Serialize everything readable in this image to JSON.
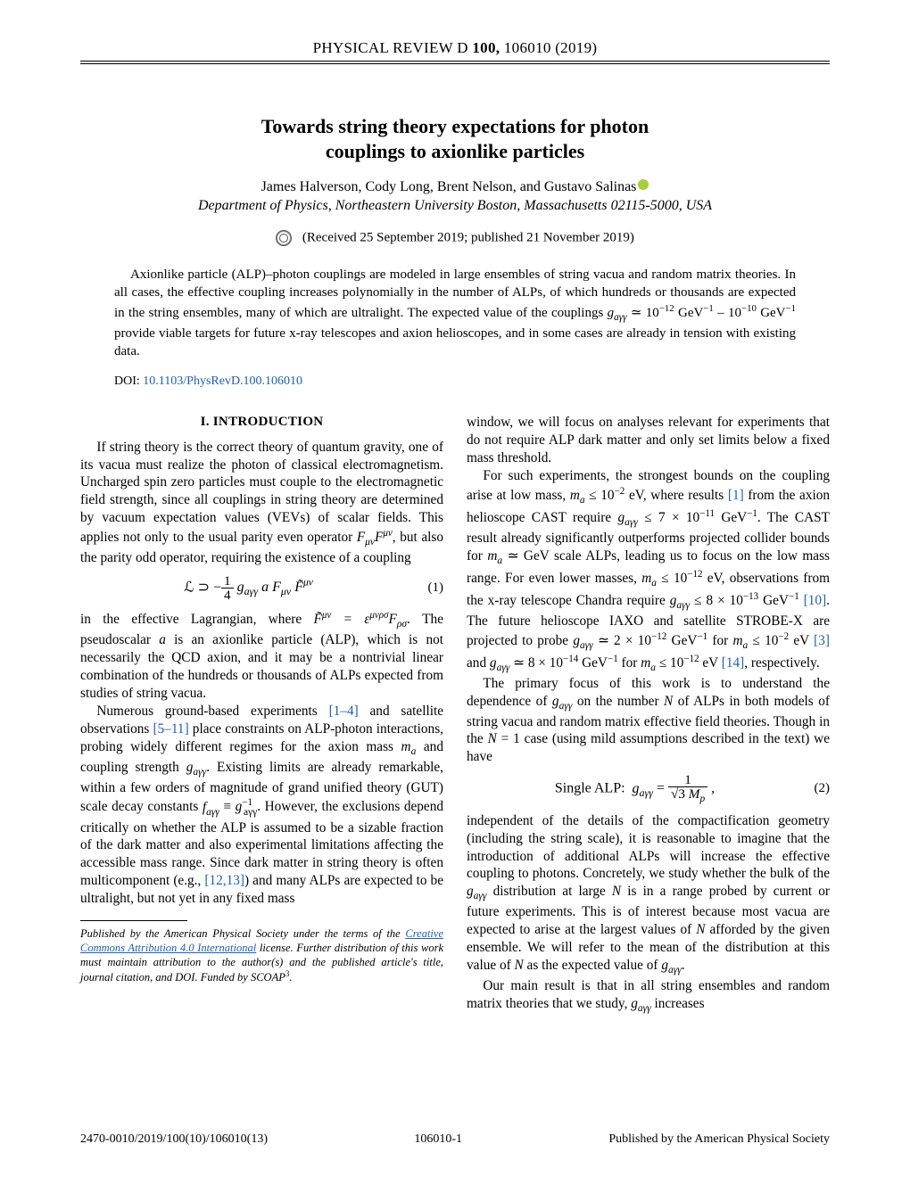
{
  "running_head": {
    "journal": "PHYSICAL REVIEW D",
    "volume": "100,",
    "article": "106010 (2019)"
  },
  "title": {
    "line1": "Towards string theory expectations for photon",
    "line2": "couplings to axionlike particles"
  },
  "authors": "James Halverson, Cody Long, Brent Nelson, and Gustavo Salinas",
  "affiliation": "Department of Physics, Northeastern University Boston, Massachusetts 02115-5000, USA",
  "dates": "(Received 25 September 2019; published 21 November 2019)",
  "abstract": "Axionlike particle (ALP)–photon couplings are modeled in large ensembles of string vacua and random matrix theories. In all cases, the effective coupling increases polynomially in the number of ALPs, of which hundreds or thousands are expected in the string ensembles, many of which are ultralight. The expected value of the couplings g_{aγγ} ≃ 10⁻¹² GeV⁻¹ – 10⁻¹⁰ GeV⁻¹ provide viable targets for future x-ray telescopes and axion helioscopes, and in some cases are already in tension with existing data.",
  "doi": {
    "label": "DOI:",
    "id": "10.1103/PhysRevD.100.106010"
  },
  "section1": {
    "heading": "I. INTRODUCTION"
  },
  "left": {
    "p1": "If string theory is the correct theory of quantum gravity, one of its vacua must realize the photon of classical electromagnetism. Uncharged spin zero particles must couple to the electromagnetic field strength, since all couplings in string theory are determined by vacuum expectation values (VEVs) of scalar fields. This applies not only to the usual parity even operator F_{μν}F^{μν}, but also the parity odd operator, requiring the existence of a coupling",
    "eq1_num": "(1)",
    "p2a": "in the effective Lagrangian, where ",
    "p2b": ". The pseudoscalar a is an axionlike particle (ALP), which is not necessarily the QCD axion, and it may be a nontrivial linear combination of the hundreds or thousands of ALPs expected from studies of string vacua.",
    "p3a": "Numerous ground-based experiments ",
    "cite1": "[1–4]",
    "p3b": " and satellite observations ",
    "cite2": "[5–11]",
    "p3c": " place constraints on ALP-photon interactions, probing widely different regimes for the axion mass m_a and coupling strength g_{aγγ}. Existing limits are already remarkable, within a few orders of magnitude of grand unified theory (GUT) scale decay constants f_{aγγ} ≡ g_{aγγ}⁻¹. However, the exclusions depend critically on whether the ALP is assumed to be a sizable fraction of the dark matter and also experimental limitations affecting the accessible mass range. Since dark matter in string theory is often multicomponent (e.g., ",
    "cite3": "[12,13]",
    "p3d": ") and many ALPs are expected to be ultralight, but not yet in any fixed mass",
    "footnote_a": "Published by the American Physical Society under the terms of the ",
    "footnote_link": "Creative Commons Attribution 4.0 International",
    "footnote_b": " license. Further distribution of this work must maintain attribution to the author(s) and the published article's title, journal citation, and DOI. Funded by SCOAP³."
  },
  "right": {
    "p1": "window, we will focus on analyses relevant for experiments that do not require ALP dark matter and only set limits below a fixed mass threshold.",
    "p2a": "For such experiments, the strongest bounds on the coupling arise at low mass, m_a ≤ 10⁻² eV, where results ",
    "cite1": "[1]",
    "p2b": " from the axion helioscope CAST require g_{aγγ} ≤ 7 × 10⁻¹¹ GeV⁻¹. The CAST result already significantly outperforms projected collider bounds for m_a ≃ GeV scale ALPs, leading us to focus on the low mass range. For even lower masses, m_a ≤ 10⁻¹² eV, observations from the x-ray telescope Chandra require g_{aγγ} ≤ 8 × 10⁻¹³ GeV⁻¹ ",
    "cite2": "[10]",
    "p2c": ". The future helioscope IAXO and satellite STROBE-X are projected to probe g_{aγγ} ≃ 2 × 10⁻¹² GeV⁻¹ for m_a ≤ 10⁻² eV ",
    "cite3": "[3]",
    "p2d": " and g_{aγγ} ≃ 8 × 10⁻¹⁴ GeV⁻¹ for m_a ≤ 10⁻¹² eV ",
    "cite4": "[14]",
    "p2e": ", respectively.",
    "p3": "The primary focus of this work is to understand the dependence of g_{aγγ} on the number N of ALPs in both models of string vacua and random matrix effective field theories. Though in the N = 1 case (using mild assumptions described in the text) we have",
    "eq2_label": "Single ALP:",
    "eq2_num": "(2)",
    "p4": "independent of the details of the compactification geometry (including the string scale), it is reasonable to imagine that the introduction of additional ALPs will increase the effective coupling to photons. Concretely, we study whether the bulk of the g_{aγγ} distribution at large N is in a range probed by current or future experiments. This is of interest because most vacua are expected to arise at the largest values of N afforded by the given ensemble. We will refer to the mean of the distribution at this value of N as the expected value of g_{aγγ}.",
    "p5": "Our main result is that in all string ensembles and random matrix theories that we study, g_{aγγ} increases"
  },
  "footer": {
    "left": "2470-0010/2019/100(10)/106010(13)",
    "center": "106010-1",
    "right": "Published by the American Physical Society"
  }
}
